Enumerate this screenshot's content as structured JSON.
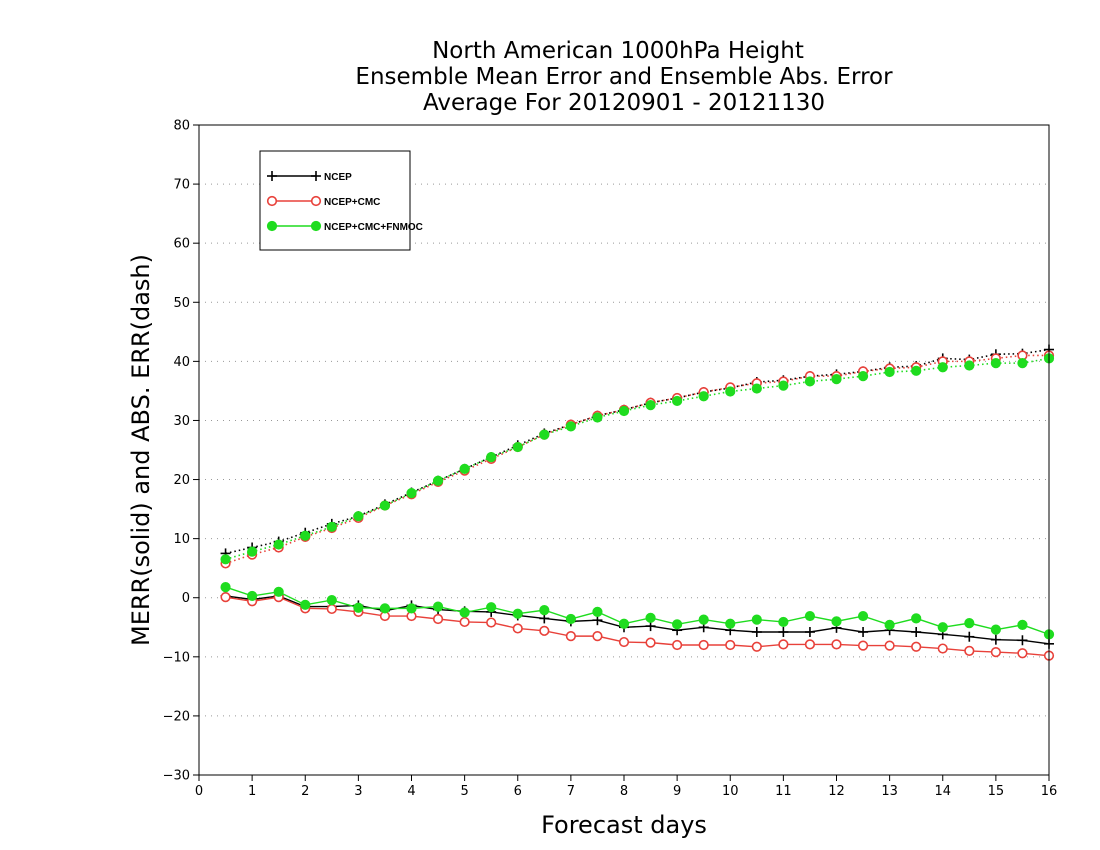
{
  "chart_data": {
    "type": "line",
    "title": [
      "North American 1000hPa Height",
      "Ensemble Mean Error and Ensemble Abs. Error",
      "Average For 20120901 - 20121130"
    ],
    "xlabel": "Forecast days",
    "ylabel": "MERR(solid) and ABS. ERR(dash)",
    "xlim": [
      0,
      16
    ],
    "ylim": [
      -30,
      80
    ],
    "xticks": [
      0,
      1,
      2,
      3,
      4,
      5,
      6,
      7,
      8,
      9,
      10,
      11,
      12,
      13,
      14,
      15,
      16
    ],
    "yticks": [
      -30,
      -20,
      -10,
      0,
      10,
      20,
      30,
      40,
      50,
      60,
      70,
      80
    ],
    "grid": "horizontal dotted",
    "legend_position": "top-left",
    "x": [
      0.5,
      1,
      1.5,
      2,
      2.5,
      3,
      3.5,
      4,
      4.5,
      5,
      5.5,
      6,
      6.5,
      7,
      7.5,
      8,
      8.5,
      9,
      9.5,
      10,
      10.5,
      11,
      11.5,
      12,
      12.5,
      13,
      13.5,
      14,
      14.5,
      15,
      15.5,
      16
    ],
    "series": [
      {
        "name": "NCEP",
        "color": "#000000",
        "marker": "plus",
        "merr": [
          0.3,
          -0.3,
          0.3,
          -1.5,
          -1.5,
          -1.3,
          -2.2,
          -1.3,
          -2.0,
          -2.3,
          -2.4,
          -3.0,
          -3.5,
          -4.0,
          -3.8,
          -5.0,
          -4.8,
          -5.5,
          -5.0,
          -5.5,
          -5.8,
          -5.8,
          -5.8,
          -5.1,
          -5.8,
          -5.5,
          -5.8,
          -6.2,
          -6.6,
          -7.1,
          -7.2,
          -7.8
        ],
        "abs_err": [
          7.5,
          8.5,
          9.5,
          11.0,
          12.5,
          13.8,
          15.8,
          17.8,
          19.8,
          21.8,
          23.8,
          25.8,
          27.8,
          29.3,
          30.8,
          31.8,
          33.0,
          33.8,
          34.8,
          35.5,
          36.5,
          36.8,
          37.5,
          37.8,
          38.3,
          39.0,
          39.2,
          40.5,
          40.3,
          41.2,
          41.3,
          42.0
        ]
      },
      {
        "name": "NCEP+CMC",
        "color": "#e8413a",
        "marker": "open-circle",
        "merr": [
          0.1,
          -0.6,
          0.1,
          -1.8,
          -1.9,
          -2.4,
          -3.1,
          -3.1,
          -3.6,
          -4.1,
          -4.2,
          -5.2,
          -5.6,
          -6.5,
          -6.5,
          -7.5,
          -7.6,
          -8.0,
          -8.0,
          -8.0,
          -8.3,
          -7.9,
          -7.9,
          -7.9,
          -8.1,
          -8.1,
          -8.3,
          -8.6,
          -9.0,
          -9.2,
          -9.4,
          -9.8
        ],
        "abs_err": [
          5.8,
          7.3,
          8.5,
          10.3,
          11.8,
          13.5,
          15.6,
          17.5,
          19.6,
          21.5,
          23.5,
          25.5,
          27.6,
          29.3,
          30.8,
          31.8,
          33.0,
          33.8,
          34.8,
          35.6,
          36.3,
          36.6,
          37.5,
          37.5,
          38.3,
          38.8,
          39.0,
          40.0,
          40.0,
          40.5,
          41.0,
          41.0
        ]
      },
      {
        "name": "NCEP+CMC+FNMOC",
        "color": "#1fdc1f",
        "marker": "filled-circle",
        "merr": [
          1.8,
          0.3,
          1.0,
          -1.2,
          -0.4,
          -1.7,
          -1.8,
          -1.8,
          -1.5,
          -2.5,
          -1.6,
          -2.7,
          -2.1,
          -3.6,
          -2.4,
          -4.4,
          -3.4,
          -4.5,
          -3.7,
          -4.4,
          -3.7,
          -4.1,
          -3.1,
          -4.0,
          -3.1,
          -4.6,
          -3.5,
          -5.0,
          -4.3,
          -5.4,
          -4.6,
          -6.2
        ],
        "abs_err": [
          6.5,
          7.8,
          9.0,
          10.5,
          12.0,
          13.8,
          15.6,
          17.7,
          19.8,
          21.8,
          23.8,
          25.5,
          27.6,
          29.0,
          30.5,
          31.6,
          32.6,
          33.3,
          34.1,
          34.9,
          35.4,
          35.9,
          36.6,
          37.0,
          37.5,
          38.2,
          38.4,
          39.0,
          39.3,
          39.7,
          39.7,
          40.5
        ]
      }
    ]
  }
}
